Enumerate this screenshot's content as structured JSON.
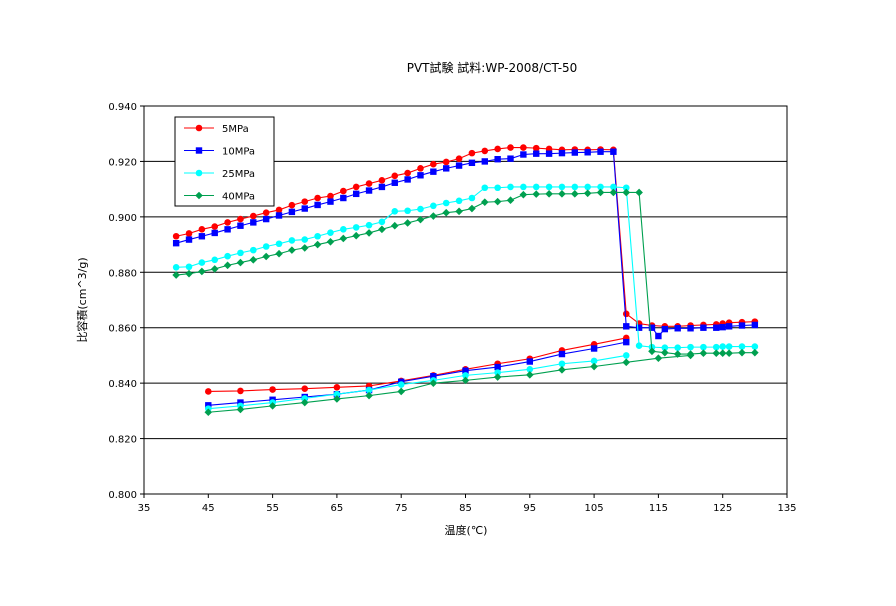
{
  "chart_data": {
    "type": "line",
    "title": "PVT試験  試料:WP-2008/CT-50",
    "xlabel": "温度(℃)",
    "ylabel": "比容積(cm^3/g)",
    "xlim": [
      35,
      135
    ],
    "ylim": [
      0.8,
      0.94
    ],
    "xticks": [
      "35",
      "45",
      "55",
      "65",
      "75",
      "85",
      "95",
      "105",
      "115",
      "125",
      "135"
    ],
    "yticks": [
      "0.800",
      "0.820",
      "0.840",
      "0.860",
      "0.880",
      "0.900",
      "0.920",
      "0.940"
    ],
    "grid": "horizontal",
    "legend_position": "top-left",
    "series": [
      {
        "name": "5MPa",
        "color": "#ff0000",
        "line_color": "#ff0000",
        "marker": "circle",
        "heating": [
          [
            40,
            0.893
          ],
          [
            42,
            0.894
          ],
          [
            44,
            0.8955
          ],
          [
            46,
            0.8965
          ],
          [
            48,
            0.898
          ],
          [
            50,
            0.8992
          ],
          [
            52,
            0.9003
          ],
          [
            54,
            0.9015
          ],
          [
            56,
            0.9025
          ],
          [
            58,
            0.9042
          ],
          [
            60,
            0.9055
          ],
          [
            62,
            0.9068
          ],
          [
            64,
            0.9075
          ],
          [
            66,
            0.9093
          ],
          [
            68,
            0.9108
          ],
          [
            70,
            0.912
          ],
          [
            72,
            0.9132
          ],
          [
            74,
            0.9148
          ],
          [
            76,
            0.9158
          ],
          [
            78,
            0.9175
          ],
          [
            80,
            0.919
          ],
          [
            82,
            0.9198
          ],
          [
            84,
            0.921
          ],
          [
            86,
            0.923
          ],
          [
            88,
            0.9238
          ],
          [
            90,
            0.9245
          ],
          [
            92,
            0.925
          ],
          [
            94,
            0.925
          ],
          [
            96,
            0.9248
          ],
          [
            98,
            0.9245
          ],
          [
            100,
            0.9242
          ],
          [
            102,
            0.9243
          ],
          [
            104,
            0.9242
          ],
          [
            106,
            0.9243
          ],
          [
            108,
            0.9242
          ],
          [
            110,
            0.865
          ],
          [
            112,
            0.8615
          ],
          [
            114,
            0.8608
          ],
          [
            116,
            0.8605
          ],
          [
            118,
            0.8605
          ],
          [
            120,
            0.8608
          ],
          [
            122,
            0.861
          ],
          [
            124,
            0.8612
          ],
          [
            125,
            0.8615
          ],
          [
            126,
            0.8618
          ],
          [
            128,
            0.862
          ],
          [
            130,
            0.8622
          ]
        ],
        "cooling": [
          [
            45,
            0.837
          ],
          [
            50,
            0.8372
          ],
          [
            55,
            0.8377
          ],
          [
            60,
            0.838
          ],
          [
            65,
            0.8385
          ],
          [
            70,
            0.839
          ],
          [
            75,
            0.8408
          ],
          [
            80,
            0.8428
          ],
          [
            85,
            0.845
          ],
          [
            90,
            0.847
          ],
          [
            95,
            0.8488
          ],
          [
            100,
            0.8518
          ],
          [
            105,
            0.854
          ],
          [
            110,
            0.8563
          ]
        ]
      },
      {
        "name": "10MPa",
        "color": "#0000ff",
        "line_color": "#0000ff",
        "marker": "square",
        "heating": [
          [
            40,
            0.8905
          ],
          [
            42,
            0.8918
          ],
          [
            44,
            0.893
          ],
          [
            46,
            0.8942
          ],
          [
            48,
            0.8955
          ],
          [
            50,
            0.8968
          ],
          [
            52,
            0.898
          ],
          [
            54,
            0.8992
          ],
          [
            56,
            0.9005
          ],
          [
            58,
            0.9018
          ],
          [
            60,
            0.903
          ],
          [
            62,
            0.9043
          ],
          [
            64,
            0.9055
          ],
          [
            66,
            0.9068
          ],
          [
            68,
            0.9083
          ],
          [
            70,
            0.9095
          ],
          [
            72,
            0.9108
          ],
          [
            74,
            0.9123
          ],
          [
            76,
            0.9135
          ],
          [
            78,
            0.915
          ],
          [
            80,
            0.9163
          ],
          [
            82,
            0.9175
          ],
          [
            84,
            0.9185
          ],
          [
            86,
            0.9195
          ],
          [
            88,
            0.92
          ],
          [
            90,
            0.9208
          ],
          [
            92,
            0.921
          ],
          [
            94,
            0.9225
          ],
          [
            96,
            0.9228
          ],
          [
            98,
            0.9228
          ],
          [
            100,
            0.923
          ],
          [
            102,
            0.9232
          ],
          [
            104,
            0.9233
          ],
          [
            106,
            0.9235
          ],
          [
            108,
            0.9235
          ],
          [
            110,
            0.8605
          ],
          [
            112,
            0.86
          ],
          [
            114,
            0.86
          ],
          [
            115,
            0.857
          ],
          [
            116,
            0.8595
          ],
          [
            118,
            0.8598
          ],
          [
            120,
            0.8598
          ],
          [
            122,
            0.86
          ],
          [
            124,
            0.86
          ],
          [
            125,
            0.8602
          ],
          [
            126,
            0.8605
          ],
          [
            128,
            0.8608
          ],
          [
            130,
            0.861
          ]
        ],
        "cooling": [
          [
            45,
            0.832
          ],
          [
            50,
            0.833
          ],
          [
            55,
            0.834
          ],
          [
            60,
            0.835
          ],
          [
            65,
            0.836
          ],
          [
            70,
            0.8375
          ],
          [
            75,
            0.8405
          ],
          [
            80,
            0.8425
          ],
          [
            85,
            0.8445
          ],
          [
            90,
            0.8458
          ],
          [
            95,
            0.8478
          ],
          [
            100,
            0.8505
          ],
          [
            105,
            0.8525
          ],
          [
            110,
            0.8548
          ]
        ]
      },
      {
        "name": "25MPa",
        "color": "#00ffff",
        "line_color": "#00ffff",
        "marker": "circle",
        "heating": [
          [
            40,
            0.8818
          ],
          [
            42,
            0.882
          ],
          [
            44,
            0.8835
          ],
          [
            46,
            0.8845
          ],
          [
            48,
            0.8858
          ],
          [
            50,
            0.887
          ],
          [
            52,
            0.888
          ],
          [
            54,
            0.8893
          ],
          [
            56,
            0.8903
          ],
          [
            58,
            0.8915
          ],
          [
            60,
            0.8918
          ],
          [
            62,
            0.893
          ],
          [
            64,
            0.8943
          ],
          [
            66,
            0.8955
          ],
          [
            68,
            0.8962
          ],
          [
            70,
            0.897
          ],
          [
            72,
            0.8982
          ],
          [
            74,
            0.902
          ],
          [
            76,
            0.9022
          ],
          [
            78,
            0.9028
          ],
          [
            80,
            0.904
          ],
          [
            82,
            0.905
          ],
          [
            84,
            0.9058
          ],
          [
            86,
            0.9068
          ],
          [
            88,
            0.9105
          ],
          [
            90,
            0.9105
          ],
          [
            92,
            0.9108
          ],
          [
            94,
            0.9108
          ],
          [
            96,
            0.9108
          ],
          [
            98,
            0.9108
          ],
          [
            100,
            0.9108
          ],
          [
            102,
            0.9108
          ],
          [
            104,
            0.9108
          ],
          [
            106,
            0.9108
          ],
          [
            108,
            0.9108
          ],
          [
            110,
            0.9105
          ],
          [
            112,
            0.8535
          ],
          [
            114,
            0.853
          ],
          [
            116,
            0.8528
          ],
          [
            118,
            0.8528
          ],
          [
            120,
            0.853
          ],
          [
            122,
            0.853
          ],
          [
            124,
            0.853
          ],
          [
            125,
            0.8532
          ],
          [
            126,
            0.8532
          ],
          [
            128,
            0.8532
          ],
          [
            130,
            0.8532
          ]
        ],
        "cooling": [
          [
            45,
            0.8308
          ],
          [
            50,
            0.8318
          ],
          [
            55,
            0.833
          ],
          [
            60,
            0.8345
          ],
          [
            65,
            0.836
          ],
          [
            70,
            0.8375
          ],
          [
            75,
            0.8395
          ],
          [
            80,
            0.841
          ],
          [
            85,
            0.8428
          ],
          [
            90,
            0.8438
          ],
          [
            95,
            0.845
          ],
          [
            100,
            0.847
          ],
          [
            105,
            0.848
          ],
          [
            110,
            0.85
          ]
        ]
      },
      {
        "name": "40MPa",
        "color": "#00a050",
        "line_color": "#00a050",
        "marker": "diamond",
        "heating": [
          [
            40,
            0.879
          ],
          [
            42,
            0.8795
          ],
          [
            44,
            0.8803
          ],
          [
            46,
            0.8812
          ],
          [
            48,
            0.8825
          ],
          [
            50,
            0.8835
          ],
          [
            52,
            0.8845
          ],
          [
            54,
            0.8857
          ],
          [
            56,
            0.8867
          ],
          [
            58,
            0.888
          ],
          [
            60,
            0.8888
          ],
          [
            62,
            0.89
          ],
          [
            64,
            0.891
          ],
          [
            66,
            0.8922
          ],
          [
            68,
            0.8932
          ],
          [
            70,
            0.8942
          ],
          [
            72,
            0.8955
          ],
          [
            74,
            0.8968
          ],
          [
            76,
            0.8978
          ],
          [
            78,
            0.899
          ],
          [
            80,
            0.9003
          ],
          [
            82,
            0.9015
          ],
          [
            84,
            0.902
          ],
          [
            86,
            0.903
          ],
          [
            88,
            0.9053
          ],
          [
            90,
            0.9055
          ],
          [
            92,
            0.906
          ],
          [
            94,
            0.908
          ],
          [
            96,
            0.9082
          ],
          [
            98,
            0.9083
          ],
          [
            100,
            0.9083
          ],
          [
            102,
            0.9083
          ],
          [
            104,
            0.9085
          ],
          [
            106,
            0.9088
          ],
          [
            108,
            0.9088
          ],
          [
            110,
            0.9088
          ],
          [
            112,
            0.9088
          ],
          [
            114,
            0.8515
          ],
          [
            116,
            0.851
          ],
          [
            118,
            0.8505
          ],
          [
            120,
            0.8505
          ],
          [
            122,
            0.8508
          ],
          [
            124,
            0.8508
          ],
          [
            125,
            0.8508
          ],
          [
            126,
            0.8508
          ],
          [
            128,
            0.851
          ],
          [
            130,
            0.851
          ]
        ],
        "cooling": [
          [
            45,
            0.8295
          ],
          [
            50,
            0.8305
          ],
          [
            55,
            0.8318
          ],
          [
            60,
            0.833
          ],
          [
            65,
            0.8343
          ],
          [
            70,
            0.8355
          ],
          [
            75,
            0.837
          ],
          [
            80,
            0.84
          ],
          [
            85,
            0.841
          ],
          [
            90,
            0.8422
          ],
          [
            95,
            0.843
          ],
          [
            100,
            0.8448
          ],
          [
            105,
            0.846
          ],
          [
            110,
            0.8475
          ],
          [
            115,
            0.849
          ],
          [
            120,
            0.85
          ]
        ]
      }
    ]
  }
}
